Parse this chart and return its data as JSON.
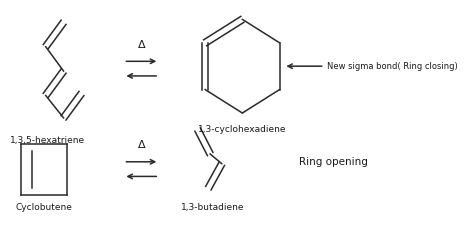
{
  "bg_color": "#ffffff",
  "line_color": "#2a2a2a",
  "text_color": "#1a1a1a",
  "figsize": [
    4.74,
    2.27
  ],
  "dpi": 100,
  "labels": {
    "hexatriene": "1,3,5-hexatriene",
    "cyclohexadiene": "1,3-cyclohexadiene",
    "cyclobutene": "Cyclobutene",
    "butadiene": "1,3-butadiene",
    "ring_closing": "New sigma bond( Ring closing)",
    "ring_opening": "Ring opening",
    "delta1": "Δ",
    "delta2": "Δ"
  }
}
